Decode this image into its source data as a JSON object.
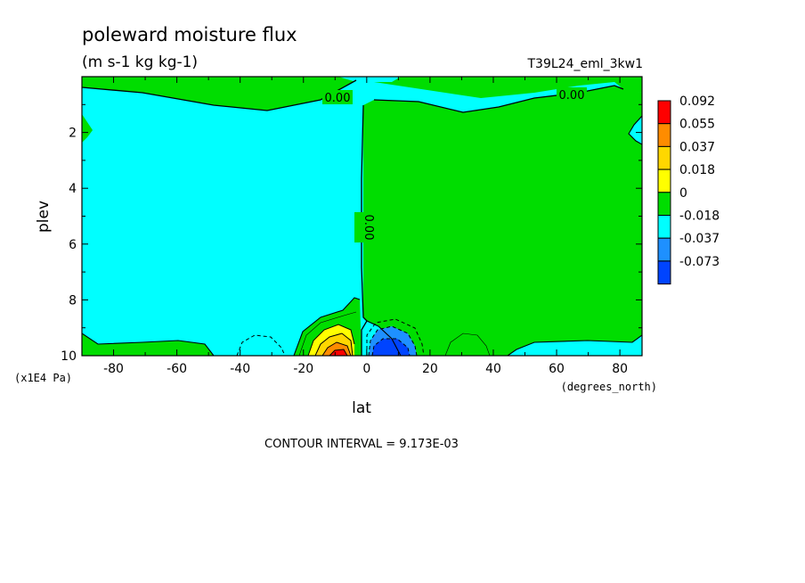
{
  "chart_data": {
    "type": "contour",
    "title": "poleward moisture flux",
    "units": "(m s-1 kg kg-1)",
    "run_label": "T39L24_eml_3kw1",
    "xlabel": "lat",
    "x_units": "(degrees_north)",
    "ylabel": "plev",
    "y_units": "(x1E4 Pa)",
    "xlim": [
      -90,
      87
    ],
    "ylim": [
      10,
      0
    ],
    "x_ticks": [
      "-80",
      "-60",
      "-40",
      "-20",
      "0",
      "20",
      "40",
      "60",
      "80"
    ],
    "x_tick_values": [
      -80,
      -60,
      -40,
      -20,
      0,
      20,
      40,
      60,
      80
    ],
    "y_ticks": [
      "2",
      "4",
      "6",
      "8",
      "10"
    ],
    "y_tick_values": [
      2,
      4,
      6,
      8,
      10
    ],
    "contour_interval_text": "CONTOUR INTERVAL = 9.173E-03",
    "contour_labels": [
      "0.00",
      "0.00",
      "0.00"
    ],
    "colorbar": {
      "labels": [
        "0.092",
        "0.055",
        "0.037",
        "0.018",
        "0",
        "-0.018",
        "-0.037",
        "-0.073"
      ],
      "colors": [
        "#ff0000",
        "#ff8c00",
        "#ffd700",
        "#ffff00",
        "#00dd00",
        "#00ffff",
        "#1e90ff",
        "#0044ff"
      ]
    },
    "regions": [
      {
        "name": "negative-flux-sh",
        "color": "#00ffff",
        "level": "-0.018 to 0"
      },
      {
        "name": "positive-flux-nh",
        "color": "#00dd00",
        "level": "0 to 0.018"
      },
      {
        "name": "positive-max-sh",
        "color": "#ff0000",
        "lat_center": -10,
        "plev_center": 9.8,
        "level": "0.055 to 0.092"
      },
      {
        "name": "negative-min-nh",
        "color": "#0044ff",
        "lat_center": 8,
        "plev_center": 9.8,
        "level": "-0.073 to -0.037"
      }
    ]
  }
}
